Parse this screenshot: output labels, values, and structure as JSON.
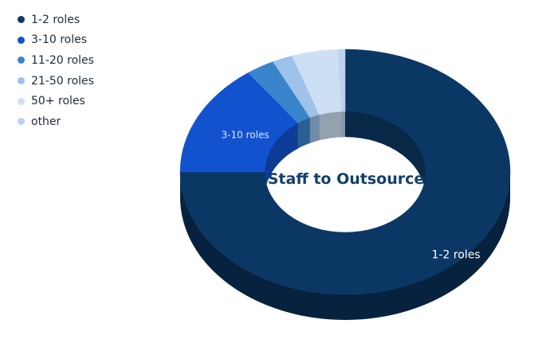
{
  "chart_data": {
    "type": "pie",
    "variant": "3d-donut",
    "title": "Staff to Outsource",
    "legend_position": "top-left",
    "slices": [
      {
        "label": "1-2 roles",
        "value": 75.0,
        "color": "#0b3764",
        "show_label": true,
        "label_color": "#ffffff"
      },
      {
        "label": "3-10 roles",
        "value": 15.0,
        "color": "#1352cf",
        "show_label": true,
        "label_color": "#dbe6ff"
      },
      {
        "label": "11-20 roles",
        "value": 2.8,
        "color": "#3a84cc",
        "show_label": false
      },
      {
        "label": "21-50 roles",
        "value": 2.0,
        "color": "#9fc2ea",
        "show_label": false
      },
      {
        "label": "50+ roles",
        "value": 4.5,
        "color": "#cde0f3",
        "show_label": false
      },
      {
        "label": "other",
        "value": 0.7,
        "color": "#bcd3ef",
        "show_label": false
      }
    ]
  }
}
